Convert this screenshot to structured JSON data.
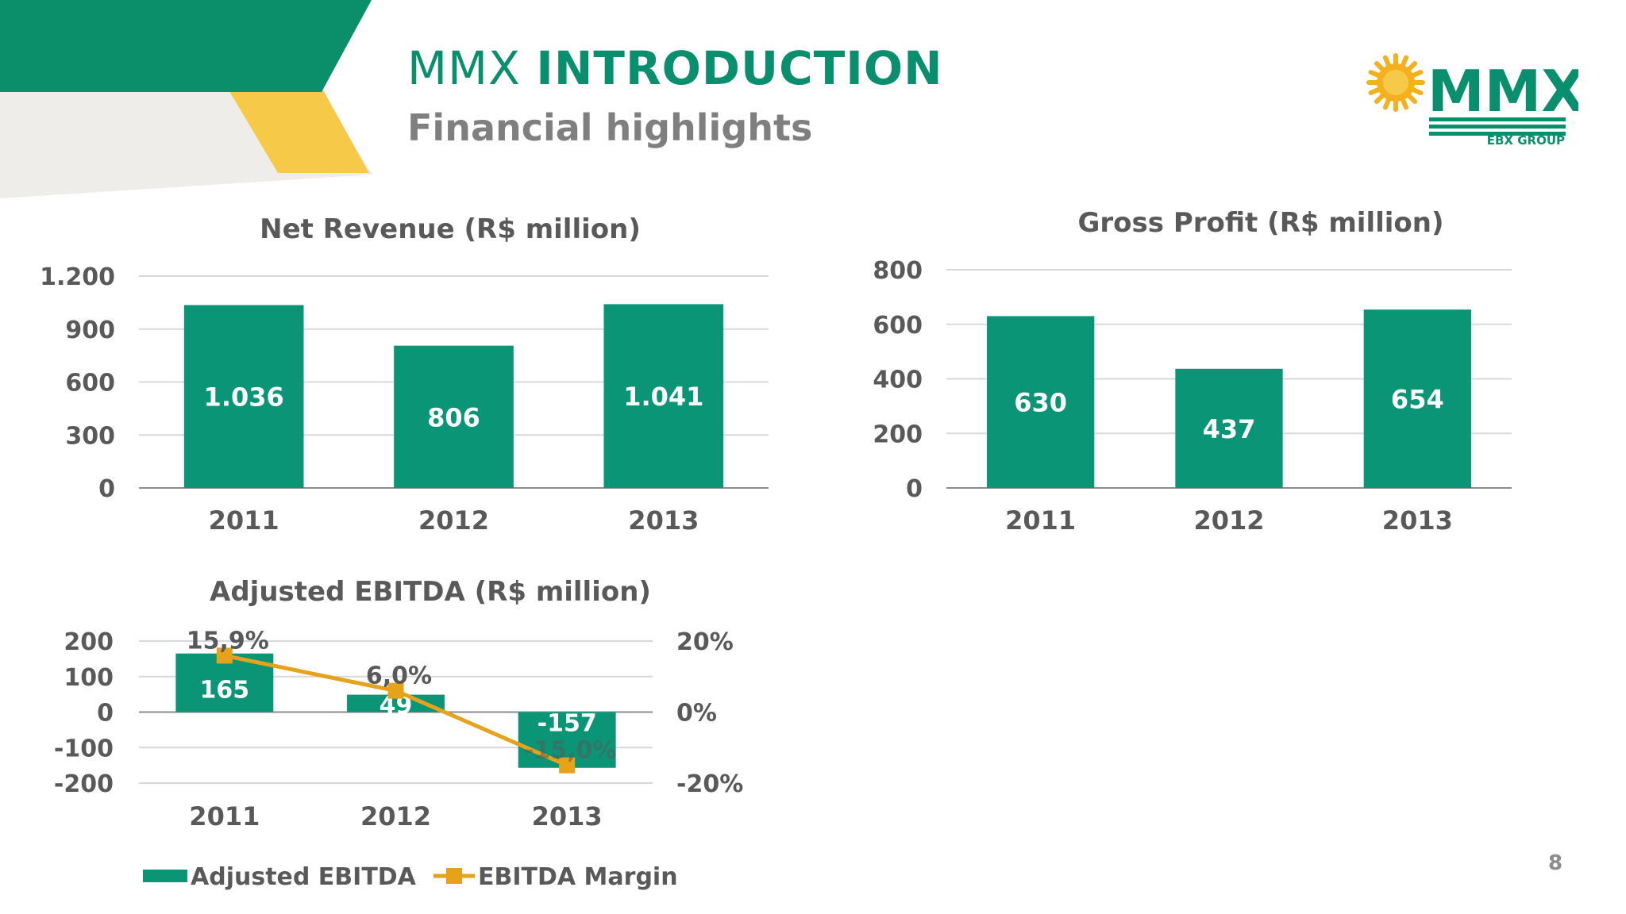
{
  "header": {
    "title_light": "MMX",
    "title_bold": "INTRODUCTION",
    "subtitle": "Financial highlights",
    "logo_text": "MMX",
    "logo_subtext": "EBX GROUP"
  },
  "page_number": "8",
  "colors": {
    "green": "#0b9577",
    "dark_green": "#0a8f6e",
    "yellow": "#f7c948",
    "orange": "#e6a21a",
    "gray_text": "#595959",
    "axis": "#8c8c8c",
    "grid": "#d9d9d9"
  },
  "chart_data": [
    {
      "id": "net-revenue",
      "type": "bar",
      "title": "Net Revenue (R$ million)",
      "categories": [
        "2011",
        "2012",
        "2013"
      ],
      "values": [
        1036,
        806,
        1041
      ],
      "data_labels": [
        "1.036",
        "806",
        "1.041"
      ],
      "yticks": [
        0,
        300,
        600,
        900,
        1200
      ],
      "ytick_labels": [
        "0",
        "300",
        "600",
        "900",
        "1.200"
      ],
      "ylim": [
        0,
        1200
      ],
      "grid": true
    },
    {
      "id": "gross-profit",
      "type": "bar",
      "title": "Gross Profit (R$ million)",
      "categories": [
        "2011",
        "2012",
        "2013"
      ],
      "values": [
        630,
        437,
        654
      ],
      "data_labels": [
        "630",
        "437",
        "654"
      ],
      "yticks": [
        0,
        200,
        400,
        600,
        800
      ],
      "ytick_labels": [
        "0",
        "200",
        "400",
        "600",
        "800"
      ],
      "ylim": [
        0,
        800
      ],
      "grid": true
    },
    {
      "id": "adjusted-ebitda",
      "type": "bar",
      "title": "Adjusted EBITDA (R$ million)",
      "categories": [
        "2011",
        "2012",
        "2013"
      ],
      "series": [
        {
          "name": "Adjusted EBITDA",
          "type": "bar",
          "values": [
            165,
            49,
            -157
          ],
          "data_labels": [
            "165",
            "49",
            "-157"
          ]
        },
        {
          "name": "EBITDA Margin",
          "type": "line",
          "axis": "secondary",
          "values": [
            15.9,
            6.0,
            -15.0
          ],
          "data_labels": [
            "15,9%",
            "6,0%",
            "-15,0%"
          ]
        }
      ],
      "yticks": [
        -200,
        -100,
        0,
        100,
        200
      ],
      "ytick_labels": [
        "-200",
        "-100",
        "0",
        "100",
        "200"
      ],
      "ylim": [
        -200,
        200
      ],
      "y2ticks": [
        -20,
        0,
        20
      ],
      "y2tick_labels": [
        "-20%",
        "0%",
        "20%"
      ],
      "y2lim": [
        -20,
        20
      ],
      "legend": "bottom",
      "grid": true
    }
  ]
}
